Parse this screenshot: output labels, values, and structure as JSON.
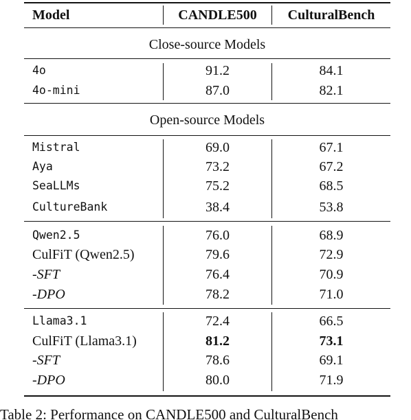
{
  "header": [
    "Model",
    "CANDLE500",
    "CulturalBench"
  ],
  "groups": [
    {
      "title": "Close-source Models",
      "rows": [
        [
          "4o",
          "91.2",
          "84.1"
        ],
        [
          "4o-mini",
          "87.0",
          "82.1"
        ]
      ]
    },
    {
      "title": "Open-source Models",
      "rows": [
        [
          "Mistral",
          "69.0",
          "67.1"
        ],
        [
          "Aya",
          "73.2",
          "67.2"
        ],
        [
          "SeaLLMs",
          "75.2",
          "68.5"
        ],
        [
          "CultureBank",
          "38.4",
          "53.8"
        ]
      ]
    },
    {
      "rows": [
        [
          "Qwen2.5",
          "76.0",
          "68.9"
        ],
        [
          "CulFiT (Qwen2.5)",
          "79.6",
          "72.9"
        ],
        [
          "-SFT",
          "76.4",
          "70.9"
        ],
        [
          "-DPO",
          "78.2",
          "71.0"
        ]
      ]
    },
    {
      "rows": [
        [
          "Llama3.1",
          "72.4",
          "66.5"
        ],
        [
          "CulFiT (Llama3.1)",
          "81.2",
          "73.1"
        ],
        [
          "-SFT",
          "78.6",
          "69.1"
        ],
        [
          "-DPO",
          "80.0",
          "71.9"
        ]
      ]
    }
  ],
  "caption": "Table 2: Performance on CANDLE500 and CulturalBench"
}
